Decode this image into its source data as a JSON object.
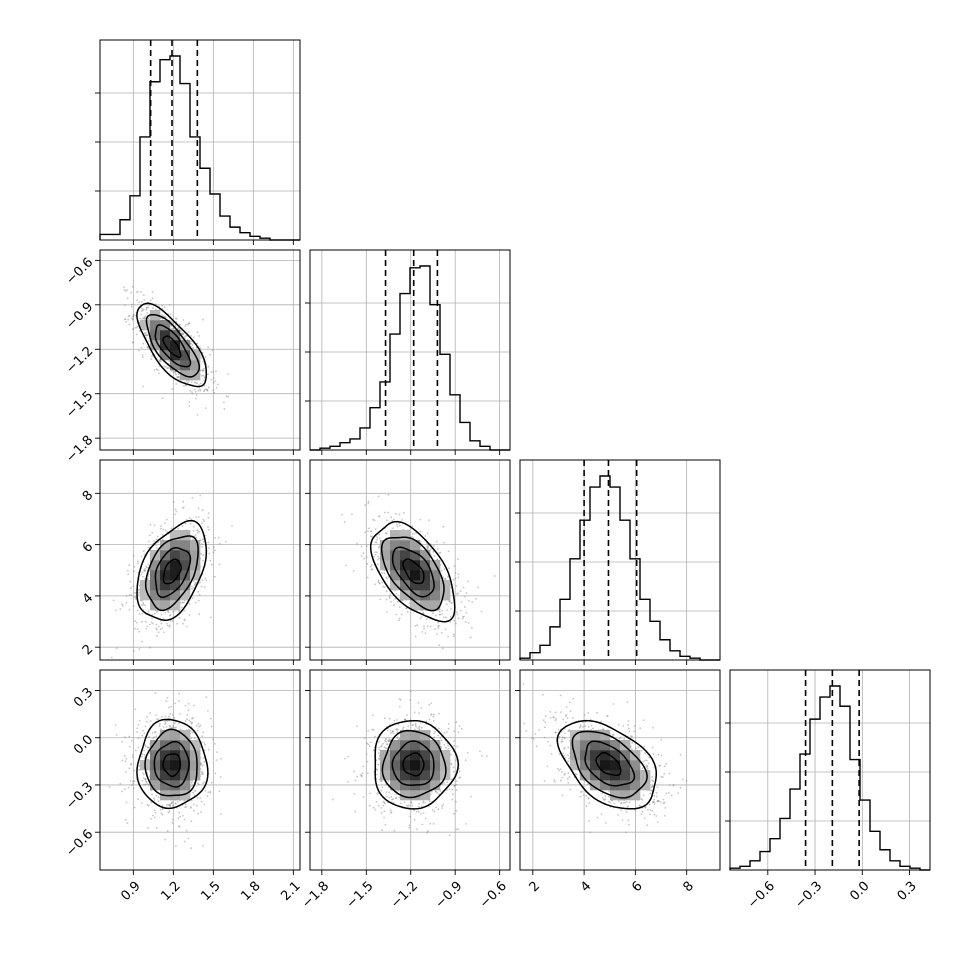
{
  "chart_data": {
    "type": "corner",
    "title": "",
    "parameters": [
      "",
      "",
      "",
      ""
    ],
    "ranges": [
      [
        0.65,
        2.15
      ],
      [
        -1.88,
        -0.53
      ],
      [
        1.5,
        9.3
      ],
      [
        -0.84,
        0.43
      ]
    ],
    "ticks": [
      {
        "values": [
          0.9,
          1.2,
          1.5,
          1.8,
          2.1
        ],
        "labels": [
          "0.9",
          "1.2",
          "1.5",
          "1.8",
          "2.1"
        ]
      },
      {
        "values": [
          -1.8,
          -1.5,
          -1.2,
          -0.9,
          -0.6
        ],
        "labels": [
          "−1.8",
          "−1.5",
          "−1.2",
          "−0.9",
          "−0.6"
        ]
      },
      {
        "values": [
          2,
          4,
          6,
          8
        ],
        "labels": [
          "2",
          "4",
          "6",
          "8"
        ]
      },
      {
        "values": [
          -0.6,
          -0.3,
          0.0,
          0.3
        ],
        "labels": [
          "−0.6",
          "−0.3",
          "0.0",
          "0.3"
        ]
      }
    ],
    "marginals": [
      {
        "quantiles": [
          1.03,
          1.19,
          1.38
        ],
        "bins": 20,
        "counts": [
          0.03,
          0.03,
          0.11,
          0.24,
          0.56,
          0.86,
          0.98,
          1.0,
          0.85,
          0.56,
          0.39,
          0.25,
          0.13,
          0.07,
          0.04,
          0.02,
          0.01,
          0.0,
          0.0,
          0.0
        ]
      },
      {
        "quantiles": [
          -1.37,
          -1.18,
          -1.02
        ],
        "bins": 20,
        "counts": [
          0.0,
          0.01,
          0.02,
          0.04,
          0.06,
          0.12,
          0.23,
          0.37,
          0.63,
          0.85,
          0.99,
          1.0,
          0.79,
          0.52,
          0.3,
          0.15,
          0.05,
          0.02,
          0.0,
          0.0
        ]
      },
      {
        "quantiles": [
          4.0,
          4.95,
          6.05
        ],
        "bins": 20,
        "counts": [
          0.01,
          0.04,
          0.08,
          0.18,
          0.33,
          0.55,
          0.76,
          0.94,
          1.0,
          0.94,
          0.76,
          0.55,
          0.33,
          0.21,
          0.11,
          0.05,
          0.02,
          0.01,
          0.0,
          0.0
        ]
      },
      {
        "quantiles": [
          -0.36,
          -0.19,
          -0.02
        ],
        "bins": 20,
        "counts": [
          0.01,
          0.02,
          0.05,
          0.1,
          0.17,
          0.28,
          0.44,
          0.63,
          0.82,
          0.94,
          1.0,
          0.89,
          0.6,
          0.38,
          0.21,
          0.11,
          0.05,
          0.02,
          0.01,
          0.0
        ]
      }
    ],
    "joint": {
      "means": [
        1.19,
        -1.18,
        4.95,
        -0.17
      ],
      "stds": [
        0.13,
        0.14,
        0.95,
        0.14
      ],
      "correlations": {
        "1-0": -0.72,
        "2-0": 0.42,
        "3-0": 0.0,
        "2-1": -0.55,
        "3-1": 0.0,
        "3-2": -0.45
      },
      "contour_levels_sigma": [
        0.5,
        1.0,
        1.5,
        2.0
      ]
    }
  }
}
